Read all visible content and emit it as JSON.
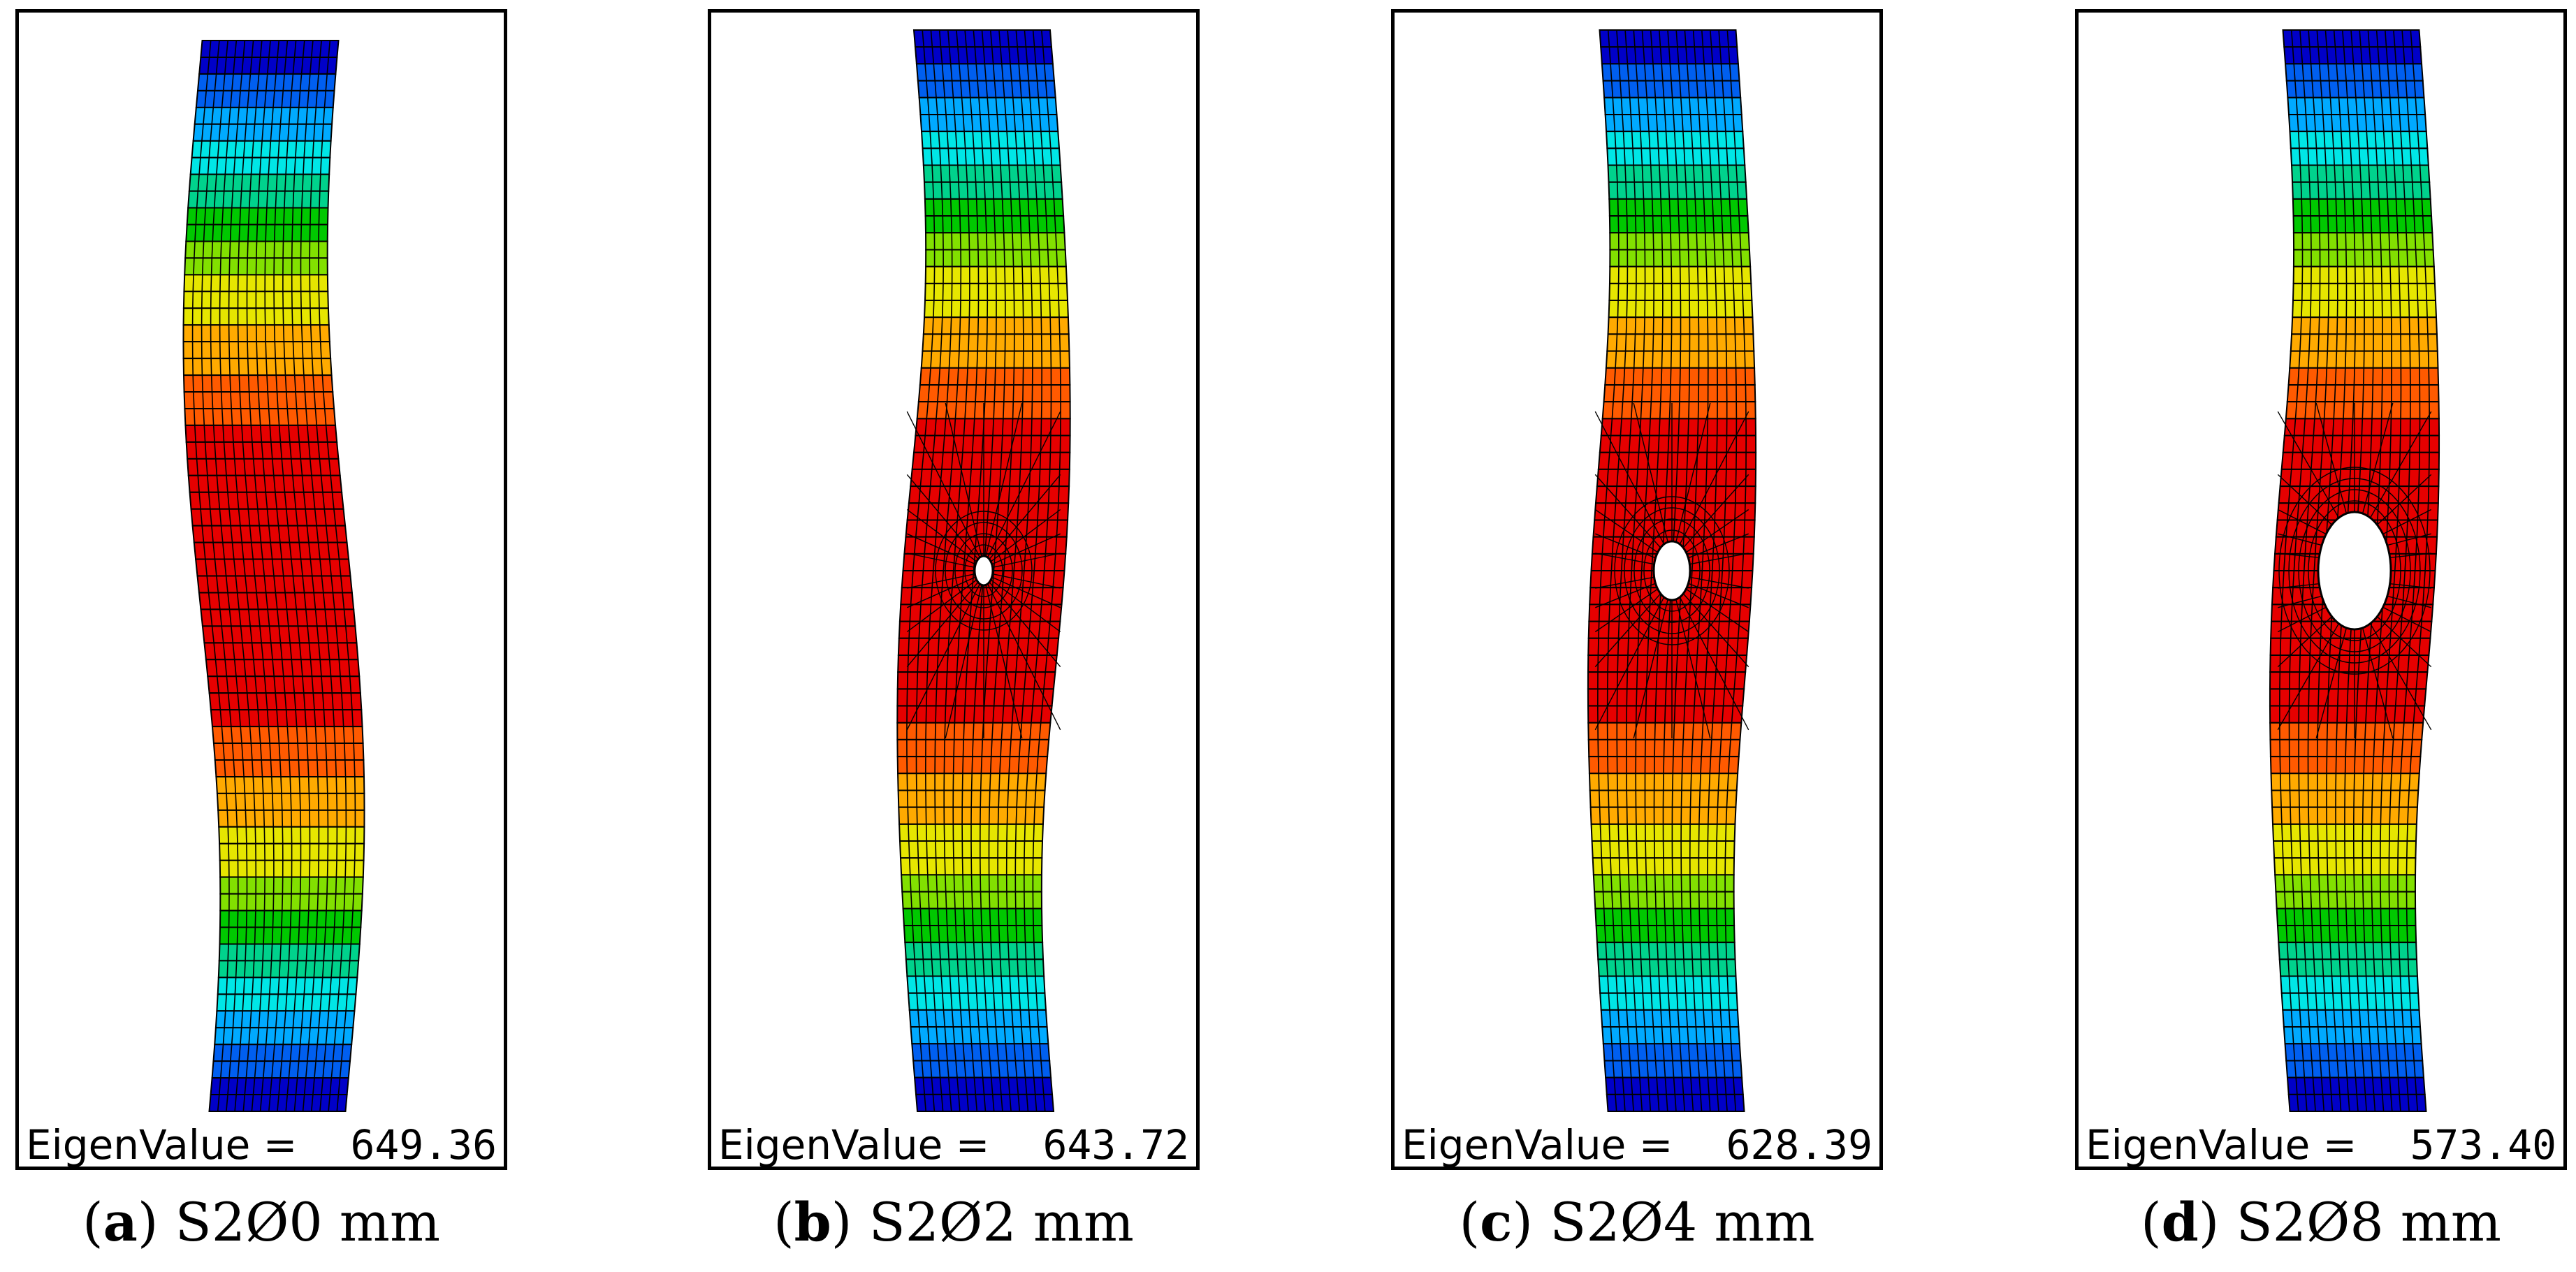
{
  "panels": [
    {
      "letter": "a",
      "label": "S2Ø0 mm",
      "eigen_label": "EigenValue =",
      "eigen_value": "649.36",
      "hole_diameter_mm": 0
    },
    {
      "letter": "b",
      "label": "S2Ø2 mm",
      "eigen_label": "EigenValue =",
      "eigen_value": "643.72",
      "hole_diameter_mm": 2
    },
    {
      "letter": "c",
      "label": "S2Ø4 mm",
      "eigen_label": "EigenValue =",
      "eigen_value": "628.39",
      "hole_diameter_mm": 4
    },
    {
      "letter": "d",
      "label": "S2Ø8 mm",
      "eigen_label": "EigenValue =",
      "eigen_value": "573.40",
      "hole_diameter_mm": 8
    }
  ],
  "colors": {
    "contour": [
      "#0000c8",
      "#005ff0",
      "#00aaff",
      "#00e6e6",
      "#00d28c",
      "#00c800",
      "#82e000",
      "#e6e600",
      "#ffaa00",
      "#ff5a00",
      "#e60000"
    ],
    "mesh": "#000000",
    "frame": "#000000"
  }
}
